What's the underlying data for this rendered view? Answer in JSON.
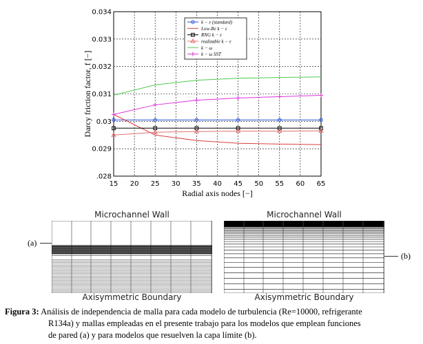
{
  "chart_data": {
    "type": "line",
    "xlabel": "Radial axis nodes [−]",
    "ylabel": "Darcy friction factor, f [−]",
    "x": [
      15,
      25,
      35,
      45,
      55,
      65
    ],
    "xticks": [
      15,
      20,
      25,
      30,
      35,
      40,
      45,
      50,
      55,
      60,
      65
    ],
    "xlim": [
      15,
      65
    ],
    "yticks": [
      0.028,
      0.029,
      0.03,
      0.031,
      0.032,
      0.033,
      0.034
    ],
    "ytick_labels": [
      ".028",
      "0.029",
      "0.03",
      "0.031",
      "0.032",
      "0.033",
      "0.034"
    ],
    "ylim": [
      0.028,
      0.034
    ],
    "grid": true,
    "legend_position": "top-right",
    "series": [
      {
        "name": "k − ε (standard)",
        "color": "#2a4fd6",
        "marker": "circle",
        "values": [
          0.03005,
          0.03005,
          0.03005,
          0.03005,
          0.03005,
          0.03005
        ]
      },
      {
        "name": "Low-Re k − ε",
        "color": "#d84040",
        "marker": "none",
        "values": [
          0.03025,
          0.0295,
          0.0293,
          0.0292,
          0.02917,
          0.02915
        ]
      },
      {
        "name": "RNG k − ε",
        "color": "#000000",
        "marker": "square",
        "values": [
          0.02975,
          0.02975,
          0.02975,
          0.02975,
          0.02975,
          0.02975
        ]
      },
      {
        "name": "realizable k − ε",
        "color": "#e07070",
        "marker": "triangle",
        "values": [
          0.0295,
          0.0296,
          0.02963,
          0.02964,
          0.02964,
          0.02965
        ]
      },
      {
        "name": "k − ω",
        "color": "#4ccc4c",
        "marker": "none",
        "values": [
          0.03095,
          0.03133,
          0.0315,
          0.03157,
          0.0316,
          0.03162
        ]
      },
      {
        "name": "k − ω SST",
        "color": "#dd33dd",
        "marker": "plus",
        "values": [
          0.03025,
          0.0306,
          0.03077,
          0.03085,
          0.0309,
          0.03095
        ]
      }
    ]
  },
  "meshes": {
    "left": {
      "title": "Microchannel Wall",
      "bottom": "Axisymmetric Boundary",
      "tag": "(a)"
    },
    "right": {
      "title": "Microchannel Wall",
      "bottom": "Axisymmetric Boundary",
      "tag": "(b)"
    }
  },
  "caption": {
    "label": "Figura 3:",
    "line1": "Análisis de independencia de malla para cada modelo de turbulencia (Re=10000, refrigerante",
    "line2": "R134a) y mallas empleadas en el presente trabajo para los modelos que emplean funciones",
    "line3": "de pared (a) y para modelos que resuelven la capa límite (b)."
  }
}
